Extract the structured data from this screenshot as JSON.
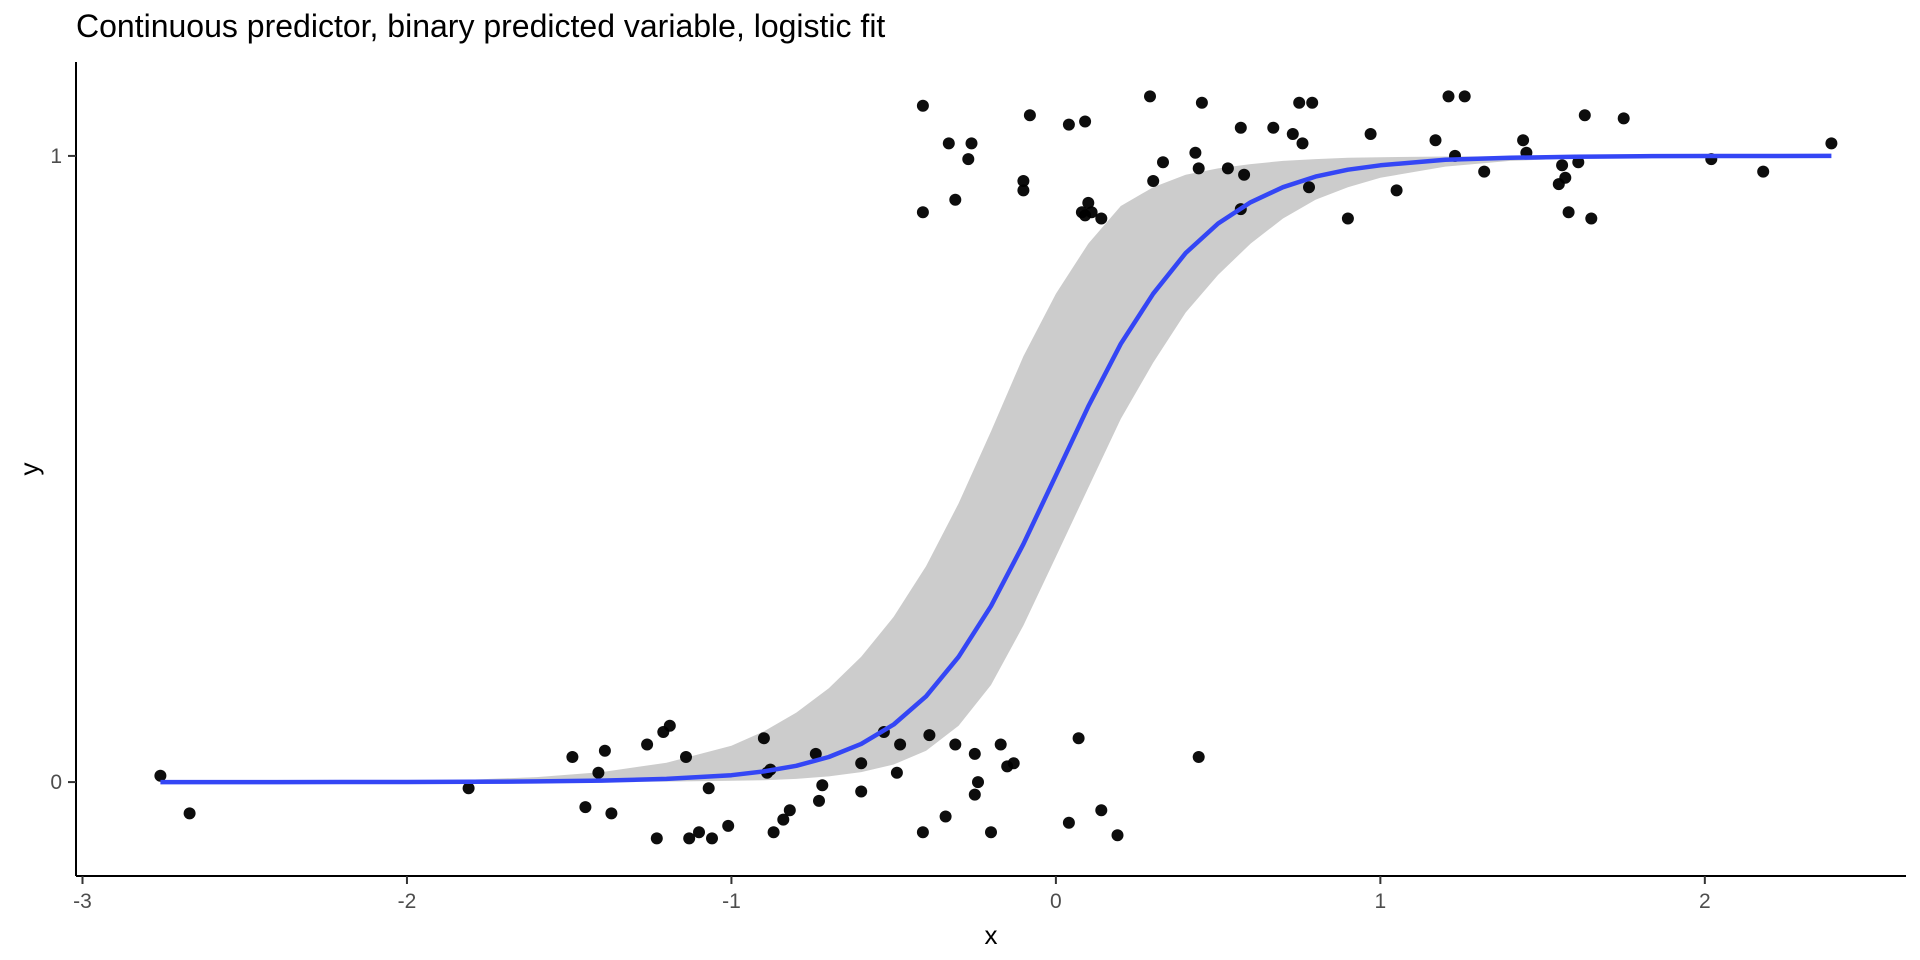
{
  "chart_data": {
    "type": "scatter",
    "title": "Continuous predictor, binary predicted variable, logistic fit",
    "xlabel": "x",
    "ylabel": "y",
    "xlim": [
      -3.02,
      2.62
    ],
    "ylim": [
      -0.15,
      1.15
    ],
    "x_ticks": [
      -3,
      -2,
      -1,
      0,
      1,
      2
    ],
    "y_ticks": [
      0,
      1
    ],
    "grid": false,
    "colors": {
      "points": "#000000",
      "fit": "#3446f5",
      "ribbon": "#cccccc",
      "axis": "#000000"
    },
    "points": [
      {
        "x": -2.76,
        "y": 0.01
      },
      {
        "x": -2.67,
        "y": -0.05
      },
      {
        "x": -1.81,
        "y": -0.01
      },
      {
        "x": -1.49,
        "y": 0.04
      },
      {
        "x": -1.45,
        "y": -0.04
      },
      {
        "x": -1.41,
        "y": 0.015
      },
      {
        "x": -1.39,
        "y": 0.05
      },
      {
        "x": -1.37,
        "y": -0.05
      },
      {
        "x": -1.26,
        "y": 0.06
      },
      {
        "x": -1.23,
        "y": -0.09
      },
      {
        "x": -1.21,
        "y": 0.08
      },
      {
        "x": -1.19,
        "y": 0.09
      },
      {
        "x": -1.14,
        "y": 0.04
      },
      {
        "x": -1.13,
        "y": -0.09
      },
      {
        "x": -1.1,
        "y": -0.08
      },
      {
        "x": -1.07,
        "y": -0.01
      },
      {
        "x": -1.06,
        "y": -0.09
      },
      {
        "x": -1.01,
        "y": -0.07
      },
      {
        "x": -0.9,
        "y": 0.07
      },
      {
        "x": -0.89,
        "y": 0.015
      },
      {
        "x": -0.88,
        "y": 0.02
      },
      {
        "x": -0.87,
        "y": -0.08
      },
      {
        "x": -0.84,
        "y": -0.06
      },
      {
        "x": -0.82,
        "y": -0.045
      },
      {
        "x": -0.74,
        "y": 0.045
      },
      {
        "x": -0.73,
        "y": -0.03
      },
      {
        "x": -0.72,
        "y": -0.005
      },
      {
        "x": -0.6,
        "y": 0.03
      },
      {
        "x": -0.6,
        "y": -0.015
      },
      {
        "x": -0.53,
        "y": 0.08
      },
      {
        "x": -0.49,
        "y": 0.015
      },
      {
        "x": -0.48,
        "y": 0.06
      },
      {
        "x": -0.41,
        "y": -0.08
      },
      {
        "x": -0.39,
        "y": 0.075
      },
      {
        "x": -0.34,
        "y": -0.055
      },
      {
        "x": -0.31,
        "y": 0.06
      },
      {
        "x": -0.25,
        "y": -0.02
      },
      {
        "x": -0.25,
        "y": 0.045
      },
      {
        "x": -0.24,
        "y": 0.0
      },
      {
        "x": -0.2,
        "y": -0.08
      },
      {
        "x": -0.17,
        "y": 0.06
      },
      {
        "x": -0.15,
        "y": 0.025
      },
      {
        "x": -0.13,
        "y": 0.03
      },
      {
        "x": 0.04,
        "y": -0.065
      },
      {
        "x": 0.07,
        "y": 0.07
      },
      {
        "x": 0.14,
        "y": -0.045
      },
      {
        "x": 0.19,
        "y": -0.085
      },
      {
        "x": 0.44,
        "y": 0.04
      },
      {
        "x": -0.41,
        "y": 1.08
      },
      {
        "x": -0.41,
        "y": 0.91
      },
      {
        "x": -0.33,
        "y": 1.02
      },
      {
        "x": -0.31,
        "y": 0.93
      },
      {
        "x": -0.27,
        "y": 0.995
      },
      {
        "x": -0.26,
        "y": 1.02
      },
      {
        "x": -0.1,
        "y": 0.96
      },
      {
        "x": -0.1,
        "y": 0.945
      },
      {
        "x": -0.08,
        "y": 1.065
      },
      {
        "x": 0.04,
        "y": 1.05
      },
      {
        "x": 0.08,
        "y": 0.91
      },
      {
        "x": 0.09,
        "y": 0.905
      },
      {
        "x": 0.09,
        "y": 1.055
      },
      {
        "x": 0.1,
        "y": 0.925
      },
      {
        "x": 0.11,
        "y": 0.91
      },
      {
        "x": 0.14,
        "y": 0.9
      },
      {
        "x": 0.29,
        "y": 1.095
      },
      {
        "x": 0.3,
        "y": 0.96
      },
      {
        "x": 0.33,
        "y": 0.99
      },
      {
        "x": 0.43,
        "y": 1.005
      },
      {
        "x": 0.44,
        "y": 0.98
      },
      {
        "x": 0.45,
        "y": 1.085
      },
      {
        "x": 0.53,
        "y": 0.98
      },
      {
        "x": 0.57,
        "y": 0.915
      },
      {
        "x": 0.57,
        "y": 1.045
      },
      {
        "x": 0.58,
        "y": 0.97
      },
      {
        "x": 0.67,
        "y": 1.045
      },
      {
        "x": 0.73,
        "y": 1.035
      },
      {
        "x": 0.75,
        "y": 1.085
      },
      {
        "x": 0.76,
        "y": 1.02
      },
      {
        "x": 0.78,
        "y": 0.95
      },
      {
        "x": 0.79,
        "y": 1.085
      },
      {
        "x": 0.9,
        "y": 0.9
      },
      {
        "x": 0.97,
        "y": 1.035
      },
      {
        "x": 1.05,
        "y": 0.945
      },
      {
        "x": 1.17,
        "y": 1.025
      },
      {
        "x": 1.21,
        "y": 1.095
      },
      {
        "x": 1.23,
        "y": 1.0
      },
      {
        "x": 1.26,
        "y": 1.095
      },
      {
        "x": 1.32,
        "y": 0.975
      },
      {
        "x": 1.44,
        "y": 1.025
      },
      {
        "x": 1.45,
        "y": 1.005
      },
      {
        "x": 1.55,
        "y": 0.955
      },
      {
        "x": 1.56,
        "y": 0.985
      },
      {
        "x": 1.57,
        "y": 0.965
      },
      {
        "x": 1.58,
        "y": 0.91
      },
      {
        "x": 1.61,
        "y": 0.99
      },
      {
        "x": 1.63,
        "y": 1.065
      },
      {
        "x": 1.65,
        "y": 0.9
      },
      {
        "x": 1.75,
        "y": 1.06
      },
      {
        "x": 2.02,
        "y": 0.995
      },
      {
        "x": 2.18,
        "y": 0.975
      },
      {
        "x": 2.39,
        "y": 1.02
      }
    ],
    "fit": [
      {
        "x": -2.76,
        "fit": 0.0,
        "lo": 0.0,
        "hi": 0.0001
      },
      {
        "x": -2.6,
        "fit": 0.0,
        "lo": 0.0,
        "hi": 0.0002
      },
      {
        "x": -2.4,
        "fit": 0.0,
        "lo": 0.0,
        "hi": 0.0004
      },
      {
        "x": -2.2,
        "fit": 0.0001,
        "lo": 0.0,
        "hi": 0.001
      },
      {
        "x": -2.0,
        "fit": 0.0002,
        "lo": 0.0,
        "hi": 0.002
      },
      {
        "x": -1.8,
        "fit": 0.0005,
        "lo": 0.0,
        "hi": 0.004
      },
      {
        "x": -1.6,
        "fit": 0.0011,
        "lo": 0.0001,
        "hi": 0.008
      },
      {
        "x": -1.4,
        "fit": 0.0023,
        "lo": 0.0003,
        "hi": 0.016
      },
      {
        "x": -1.2,
        "fit": 0.005,
        "lo": 0.0007,
        "hi": 0.031
      },
      {
        "x": -1.0,
        "fit": 0.011,
        "lo": 0.002,
        "hi": 0.058
      },
      {
        "x": -0.9,
        "fit": 0.017,
        "lo": 0.003,
        "hi": 0.081
      },
      {
        "x": -0.8,
        "fit": 0.026,
        "lo": 0.005,
        "hi": 0.111
      },
      {
        "x": -0.7,
        "fit": 0.04,
        "lo": 0.009,
        "hi": 0.15
      },
      {
        "x": -0.6,
        "fit": 0.061,
        "lo": 0.016,
        "hi": 0.2
      },
      {
        "x": -0.5,
        "fit": 0.092,
        "lo": 0.028,
        "hi": 0.264
      },
      {
        "x": -0.4,
        "fit": 0.137,
        "lo": 0.05,
        "hi": 0.345
      },
      {
        "x": -0.3,
        "fit": 0.2,
        "lo": 0.09,
        "hi": 0.445
      },
      {
        "x": -0.2,
        "fit": 0.281,
        "lo": 0.155,
        "hi": 0.56
      },
      {
        "x": -0.1,
        "fit": 0.38,
        "lo": 0.25,
        "hi": 0.68
      },
      {
        "x": 0.0,
        "fit": 0.49,
        "lo": 0.36,
        "hi": 0.78
      },
      {
        "x": 0.1,
        "fit": 0.6,
        "lo": 0.47,
        "hi": 0.86
      },
      {
        "x": 0.2,
        "fit": 0.7,
        "lo": 0.58,
        "hi": 0.92
      },
      {
        "x": 0.3,
        "fit": 0.78,
        "lo": 0.67,
        "hi": 0.95
      },
      {
        "x": 0.4,
        "fit": 0.845,
        "lo": 0.75,
        "hi": 0.97
      },
      {
        "x": 0.5,
        "fit": 0.892,
        "lo": 0.81,
        "hi": 0.98
      },
      {
        "x": 0.6,
        "fit": 0.926,
        "lo": 0.86,
        "hi": 0.987
      },
      {
        "x": 0.7,
        "fit": 0.95,
        "lo": 0.9,
        "hi": 0.992
      },
      {
        "x": 0.8,
        "fit": 0.967,
        "lo": 0.93,
        "hi": 0.995
      },
      {
        "x": 0.9,
        "fit": 0.978,
        "lo": 0.95,
        "hi": 0.997
      },
      {
        "x": 1.0,
        "fit": 0.985,
        "lo": 0.965,
        "hi": 0.998
      },
      {
        "x": 1.2,
        "fit": 0.994,
        "lo": 0.983,
        "hi": 0.999
      },
      {
        "x": 1.4,
        "fit": 0.997,
        "lo": 0.992,
        "hi": 0.9996
      },
      {
        "x": 1.6,
        "fit": 0.9988,
        "lo": 0.996,
        "hi": 0.9998
      },
      {
        "x": 1.8,
        "fit": 0.9995,
        "lo": 0.998,
        "hi": 0.9999
      },
      {
        "x": 2.0,
        "fit": 0.9998,
        "lo": 0.999,
        "hi": 1.0
      },
      {
        "x": 2.2,
        "fit": 0.9999,
        "lo": 0.9995,
        "hi": 1.0
      },
      {
        "x": 2.39,
        "fit": 1.0,
        "lo": 0.9998,
        "hi": 1.0
      }
    ]
  }
}
